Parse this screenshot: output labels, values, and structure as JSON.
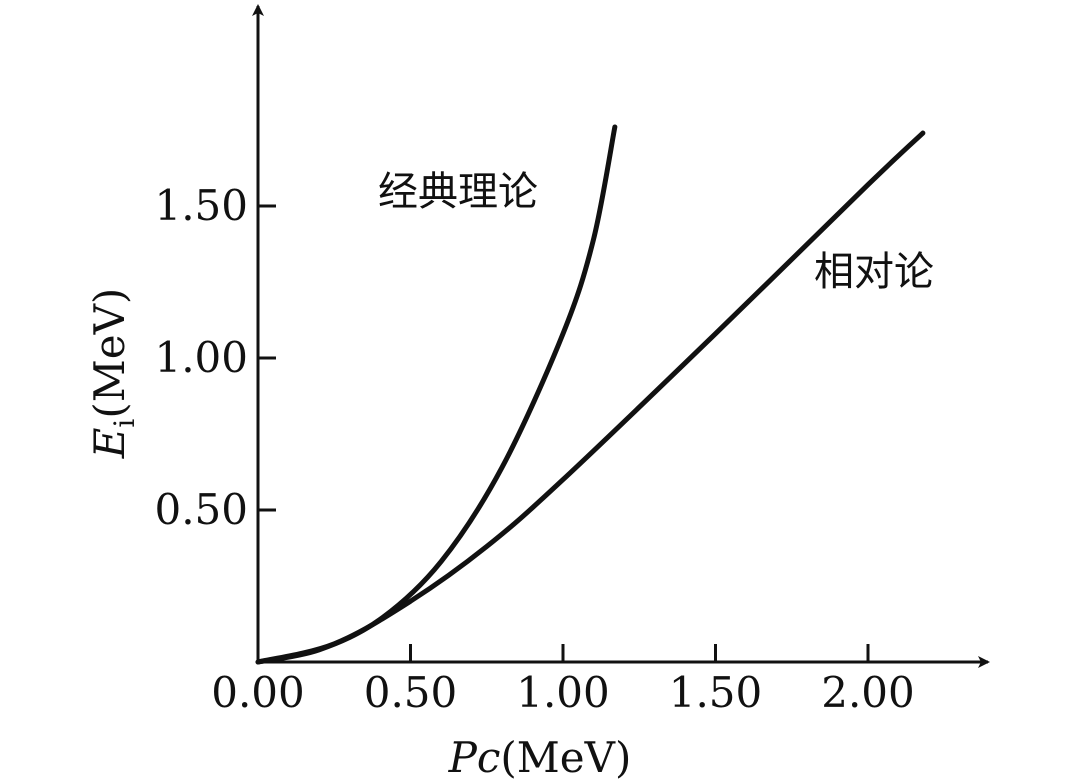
{
  "chart_data": {
    "type": "line",
    "xlabel_symbol": "Pc",
    "xlabel_unit": "(MeV)",
    "ylabel_symbol": "E",
    "ylabel_subscript": "i",
    "ylabel_unit": "(MeV)",
    "xlim": [
      0,
      2.5
    ],
    "ylim": [
      0,
      1.85
    ],
    "x_ticks": [
      {
        "value": 0.0,
        "label": "0.00"
      },
      {
        "value": 0.5,
        "label": "0.50"
      },
      {
        "value": 1.0,
        "label": "1.00"
      },
      {
        "value": 1.5,
        "label": "1.50"
      },
      {
        "value": 2.0,
        "label": "2.00"
      }
    ],
    "y_ticks": [
      {
        "value": 0.5,
        "label": "0.50"
      },
      {
        "value": 1.0,
        "label": "1.00"
      },
      {
        "value": 1.5,
        "label": "1.50"
      }
    ],
    "grid": false,
    "series": [
      {
        "name": "经典理论",
        "color": "#111111",
        "points": [
          [
            0.0,
            0.0
          ],
          [
            0.2,
            0.04
          ],
          [
            0.4,
            0.14
          ],
          [
            0.6,
            0.33
          ],
          [
            0.8,
            0.64
          ],
          [
            1.0,
            1.08
          ],
          [
            1.1,
            1.39
          ],
          [
            1.17,
            1.76
          ]
        ]
      },
      {
        "name": "相对论",
        "color": "#111111",
        "points": [
          [
            0.0,
            0.0
          ],
          [
            0.25,
            0.06
          ],
          [
            0.5,
            0.2
          ],
          [
            0.75,
            0.38
          ],
          [
            1.0,
            0.6
          ],
          [
            1.5,
            1.08
          ],
          [
            2.0,
            1.57
          ],
          [
            2.18,
            1.74
          ]
        ]
      }
    ]
  }
}
